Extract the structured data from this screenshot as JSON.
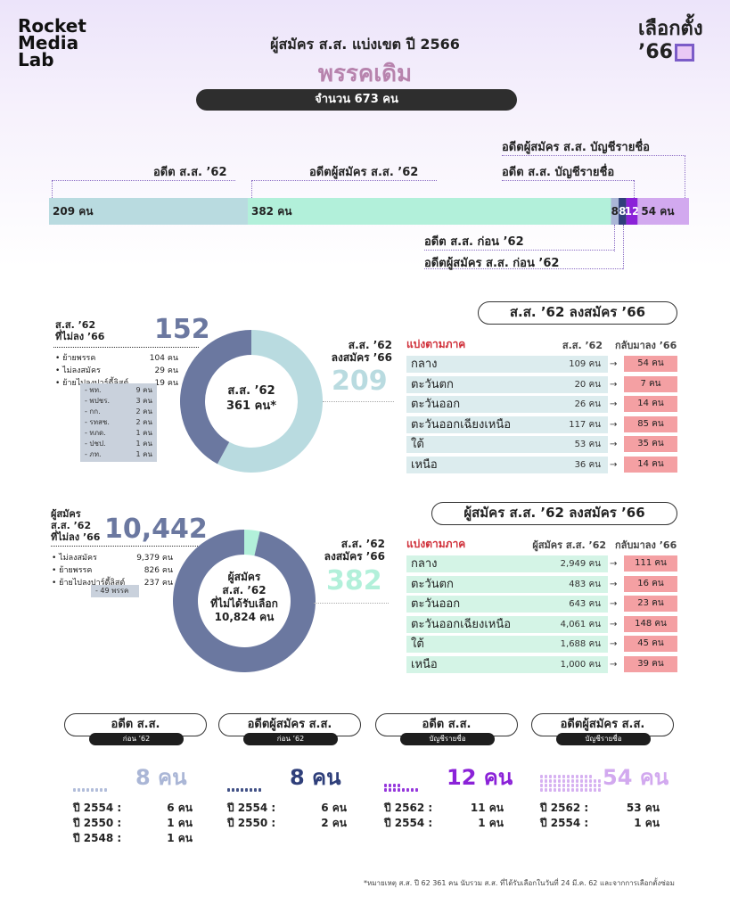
{
  "header": {
    "logo_lines": [
      "Rocket",
      "Media",
      "Lab"
    ],
    "brand_lines": [
      "เลือกตั้ง",
      "’66"
    ],
    "title": "ผู้สมัคร ส.ส. แบ่งเขต ปี 2566",
    "party": "พรรคเดิม",
    "count": "จำนวน 673 คน"
  },
  "stacked_bar": {
    "labels": {
      "ex_mp62": "อดีต ส.ส. ’62",
      "ex_cand62": "อดีตผู้สมัคร ส.ส. ’62",
      "ex_party_cand": "อดีตผู้สมัคร ส.ส. บัญชีรายชื่อ",
      "ex_party_mp": "อดีต ส.ส. บัญชีรายชื่อ",
      "ex_mp_before62": "อดีต ส.ส. ก่อน ’62",
      "ex_cand_before62": "อดีตผู้สมัคร ส.ส. ก่อน ’62"
    },
    "segments": [
      {
        "key": "ex_mp62",
        "label": "209 คน",
        "value": 209,
        "color": "#b9dbe0"
      },
      {
        "key": "ex_cand62",
        "label": "382 คน",
        "value": 382,
        "color": "#b2f0da"
      },
      {
        "key": "ex_mp_before62",
        "label": "8",
        "value": 8,
        "color": "#aab6d6"
      },
      {
        "key": "ex_cand_before62",
        "label": "8",
        "value": 8,
        "color": "#2f3f7a"
      },
      {
        "key": "ex_party_mp",
        "label": "12",
        "value": 12,
        "color": "#8b22d8"
      },
      {
        "key": "ex_party_cand",
        "label": "54 คน",
        "value": 54,
        "color": "#d2a9ef"
      }
    ]
  },
  "section1": {
    "left_label": "ส.ส. ’62\nที่ไม่ลง ’66",
    "left_value": "152",
    "left_items": [
      {
        "name": "ย้ายพรรค",
        "value": "104 คน"
      },
      {
        "name": "ไม่ลงสมัคร",
        "value": "29 คน"
      },
      {
        "name": "ย้ายไปลงปาร์ตี้ลิสต์",
        "value": "19 คน"
      }
    ],
    "sublist": [
      {
        "name": "- พท.",
        "value": "9 คน"
      },
      {
        "name": "- พปชร.",
        "value": "3 คน"
      },
      {
        "name": "- กก.",
        "value": "2 คน"
      },
      {
        "name": "- รทสช.",
        "value": "2 คน"
      },
      {
        "name": "- ทภด.",
        "value": "1 คน"
      },
      {
        "name": "- ปชป.",
        "value": "1 คน"
      },
      {
        "name": "- ภท.",
        "value": "1 คน"
      }
    ],
    "center": "ส.ส. ’62\n361 คน*",
    "right_label": "ส.ส. ’62\nลงสมัคร ’66",
    "right_value": "209",
    "table_title": "ส.ส. ’62 ลงสมัคร ’66",
    "col1": "แบ่งตามภาค",
    "col2": "ส.ส. ’62",
    "col3": "กลับมาลง ’66",
    "rows": [
      {
        "region": "กลาง",
        "total": "109 คน",
        "back": "54 คน"
      },
      {
        "region": "ตะวันตก",
        "total": "20 คน",
        "back": "7 คน"
      },
      {
        "region": "ตะวันออก",
        "total": "26 คน",
        "back": "14 คน"
      },
      {
        "region": "ตะวันออกเฉียงเหนือ",
        "total": "117 คน",
        "back": "85 คน"
      },
      {
        "region": "ใต้",
        "total": "53 คน",
        "back": "35 คน"
      },
      {
        "region": "เหนือ",
        "total": "36 คน",
        "back": "14 คน"
      }
    ]
  },
  "section2": {
    "left_label": "ผู้สมัคร\nส.ส. ’62\nที่ไม่ลง ’66",
    "left_value": "10,442",
    "left_items": [
      {
        "name": "ไม่ลงสมัคร",
        "value": "9,379 คน"
      },
      {
        "name": "ย้ายพรรค",
        "value": "826 คน"
      },
      {
        "name": "ย้ายไปลงปาร์ตี้ลิสต์",
        "value": "237 คน"
      }
    ],
    "sub_note": "- 49 พรรค",
    "center": "ผู้สมัคร\nส.ส. ’62\nที่ไม่ได้รับเลือก\n10,824 คน",
    "right_label": "ส.ส. ’62\nลงสมัคร ’66",
    "right_value": "382",
    "table_title": "ผู้สมัคร ส.ส. ’62 ลงสมัคร ’66",
    "col1": "แบ่งตามภาค",
    "col2": "ผู้สมัคร ส.ส. ’62",
    "col3": "กลับมาลง ’66",
    "rows": [
      {
        "region": "กลาง",
        "total": "2,949 คน",
        "back": "111 คน"
      },
      {
        "region": "ตะวันตก",
        "total": "483 คน",
        "back": "16 คน"
      },
      {
        "region": "ตะวันออก",
        "total": "643 คน",
        "back": "23 คน"
      },
      {
        "region": "ตะวันออกเฉียงเหนือ",
        "total": "4,061 คน",
        "back": "148 คน"
      },
      {
        "region": "ใต้",
        "total": "1,688 คน",
        "back": "45 คน"
      },
      {
        "region": "เหนือ",
        "total": "1,000 คน",
        "back": "39 คน"
      }
    ]
  },
  "cards": [
    {
      "title": "อดีต ส.ส.",
      "sub": "ก่อน ’62",
      "value": "8 คน",
      "color": "#aab6d6",
      "icons": 8,
      "years": [
        {
          "y": "ปี 2554 :",
          "n": "6 คน"
        },
        {
          "y": "ปี 2550 :",
          "n": "1 คน"
        },
        {
          "y": "ปี 2548 :",
          "n": "1 คน"
        }
      ]
    },
    {
      "title": "อดีตผู้สมัคร ส.ส.",
      "sub": "ก่อน ’62",
      "value": "8 คน",
      "color": "#2f3f7a",
      "icons": 8,
      "years": [
        {
          "y": "ปี 2554 :",
          "n": "6 คน"
        },
        {
          "y": "ปี 2550 :",
          "n": "2 คน"
        }
      ]
    },
    {
      "title": "อดีต ส.ส.",
      "sub": "บัญชีรายชื่อ",
      "value": "12 คน",
      "color": "#8b22d8",
      "icons": 12,
      "years": [
        {
          "y": "ปี 2562 :",
          "n": "11 คน"
        },
        {
          "y": "ปี 2554 :",
          "n": "1 คน"
        }
      ]
    },
    {
      "title": "อดีตผู้สมัคร ส.ส.",
      "sub": "บัญชีรายชื่อ",
      "value": "54 คน",
      "color": "#d2a9ef",
      "icons": 54,
      "years": [
        {
          "y": "ปี 2562 :",
          "n": "53 คน"
        },
        {
          "y": "ปี 2554 :",
          "n": "1 คน"
        }
      ]
    }
  ],
  "footnote": "*หมายเหตุ ส.ส. ปี 62 361 คน นับรวม ส.ส. ที่ได้รับเลือกในวันที่ 24 มี.ค. 62 และจากการเลือกตั้งซ่อม",
  "chart_data": [
    {
      "type": "bar",
      "title": "",
      "categories": [
        "อดีต ส.ส. ’62",
        "อดีตผู้สมัคร ส.ส. ’62",
        "อดีต ส.ส. ก่อน ’62",
        "อดีตผู้สมัคร ส.ส. ก่อน ’62",
        "อดีต ส.ส. บัญชีรายชื่อ",
        "อดีตผู้สมัคร ส.ส. บัญชีรายชื่อ"
      ],
      "values": [
        209,
        382,
        8,
        8,
        12,
        54
      ]
    },
    {
      "type": "pie",
      "title": "ส.ส. ’62 361 คน*",
      "categories": [
        "ส.ส. ’62 ลงสมัคร ’66",
        "ส.ส. ’62 ที่ไม่ลง ’66"
      ],
      "values": [
        209,
        152
      ]
    },
    {
      "type": "pie",
      "title": "ผู้สมัคร ส.ส. ’62 ที่ไม่ได้รับเลือก 10,824 คน",
      "categories": [
        "ส.ส. ’62 ลงสมัคร ’66",
        "ผู้สมัคร ส.ส. ’62 ที่ไม่ลง ’66"
      ],
      "values": [
        382,
        10442
      ]
    }
  ]
}
